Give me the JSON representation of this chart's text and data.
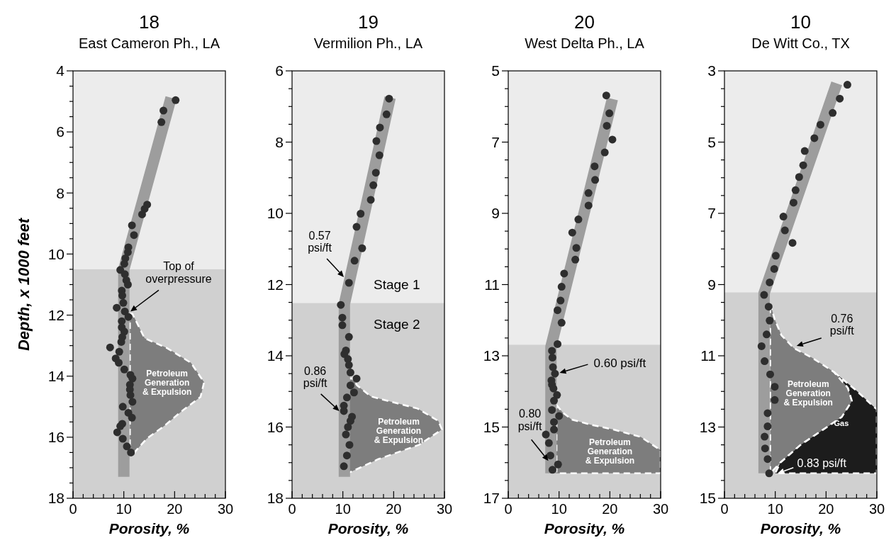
{
  "chart_data": [
    {
      "type": "scatter",
      "title": "18",
      "subtitle": "East Cameron Ph., LA",
      "xlabel": "Porosity, %",
      "ylabel": "Depth, x 1000 feet",
      "xlim": [
        0,
        30
      ],
      "ylim": [
        18,
        4
      ],
      "xticks": [
        0,
        {
          "value": 2,
          "label": null
        },
        {
          "value": 4,
          "label": null
        },
        {
          "value": 6,
          "label": null
        },
        {
          "value": 8,
          "label": null
        },
        10,
        {
          "value": 12,
          "label": null
        },
        {
          "value": 14,
          "label": null
        },
        {
          "value": 16,
          "label": null
        },
        {
          "value": 18,
          "label": null
        },
        20,
        {
          "value": 22,
          "label": null
        },
        {
          "value": 24,
          "label": null
        },
        {
          "value": 26,
          "label": null
        },
        {
          "value": 28,
          "label": null
        },
        30
      ],
      "yticks": [
        4,
        {
          "value": 4.5,
          "label": null
        },
        {
          "value": 5,
          "label": null
        },
        {
          "value": 5.5,
          "label": null
        },
        6,
        {
          "value": 6.5,
          "label": null
        },
        {
          "value": 7,
          "label": null
        },
        {
          "value": 7.5,
          "label": null
        },
        8,
        {
          "value": 8.5,
          "label": null
        },
        {
          "value": 9,
          "label": null
        },
        {
          "value": 9.5,
          "label": null
        },
        10,
        {
          "value": 10.5,
          "label": null
        },
        {
          "value": 11,
          "label": null
        },
        {
          "value": 11.5,
          "label": null
        },
        12,
        {
          "value": 12.5,
          "label": null
        },
        {
          "value": 13,
          "label": null
        },
        {
          "value": 13.5,
          "label": null
        },
        14,
        {
          "value": 14.5,
          "label": null
        },
        {
          "value": 15,
          "label": null
        },
        {
          "value": 15.5,
          "label": null
        },
        16,
        {
          "value": 16.5,
          "label": null
        },
        {
          "value": 17,
          "label": null
        },
        {
          "value": 17.5,
          "label": null
        },
        18
      ],
      "bands": [
        {
          "axis": "y",
          "from": 10.5,
          "to": 18,
          "color": "#d0d0d0"
        }
      ],
      "series": [
        {
          "type": "area",
          "color": "#7d7d7d",
          "line_style": "dashed",
          "x": [
            11.2,
            11.7,
            14.1,
            18.5,
            23.2,
            25.8,
            25.1,
            21.3,
            17.9,
            14.5,
            12.6,
            11.6,
            11.2
          ],
          "values": [
            11.96,
            11.96,
            12.76,
            13.08,
            13.56,
            14.2,
            14.68,
            15.16,
            15.64,
            16.05,
            16.4,
            16.6,
            16.6
          ]
        },
        {
          "type": "line",
          "color": "#9d9d9d",
          "x": [
            19.3,
            10.0,
            10.0
          ],
          "values": [
            4.88,
            10.5,
            17.3
          ]
        },
        {
          "color": "#2e2e2e",
          "marker": "circle",
          "x": [
            20.2,
            17.8,
            17.4,
            14.6,
            14.1,
            13.6,
            11.6,
            12.0,
            10.9,
            10.8,
            10.3,
            10.1,
            9.3,
            10.2,
            10.5,
            10.8,
            9.6,
            9.7,
            9.9,
            8.6,
            10.2,
            10.9,
            9.6,
            9.6,
            10.1,
            9.7,
            9.5,
            7.3,
            9.1,
            8.4,
            9.0,
            10.1,
            11.3,
            11.7,
            11.2,
            11.2,
            11.3,
            11.7,
            9.8,
            10.9,
            11.6,
            9.7,
            9.3,
            8.7,
            9.8,
            10.6,
            11.4
          ],
          "values": [
            4.96,
            5.3,
            5.68,
            8.38,
            8.52,
            8.7,
            9.06,
            9.38,
            9.78,
            9.94,
            10.14,
            10.32,
            10.52,
            10.66,
            10.86,
            11.0,
            11.2,
            11.36,
            11.6,
            11.76,
            11.88,
            12.06,
            12.2,
            12.4,
            12.54,
            12.72,
            12.88,
            13.06,
            13.2,
            13.42,
            13.56,
            13.78,
            13.96,
            14.08,
            14.28,
            14.44,
            14.62,
            14.84,
            15.0,
            15.2,
            15.36,
            15.56,
            15.64,
            15.84,
            16.05,
            16.3,
            16.5
          ]
        }
      ],
      "annotations": [
        {
          "text": "Top of overpressure",
          "x": 11.3,
          "y": 11.88
        },
        "Petroleum Generation & Expulsion"
      ]
    },
    {
      "type": "scatter",
      "title": "19",
      "subtitle": "Vermilion Ph., LA",
      "xlabel": "Porosity, %",
      "xlim": [
        0,
        30
      ],
      "ylim": [
        18,
        6
      ],
      "xticks": [
        0,
        {
          "value": 2,
          "label": null
        },
        {
          "value": 4,
          "label": null
        },
        {
          "value": 6,
          "label": null
        },
        {
          "value": 8,
          "label": null
        },
        10,
        {
          "value": 12,
          "label": null
        },
        {
          "value": 14,
          "label": null
        },
        {
          "value": 16,
          "label": null
        },
        {
          "value": 18,
          "label": null
        },
        20,
        {
          "value": 22,
          "label": null
        },
        {
          "value": 24,
          "label": null
        },
        {
          "value": 26,
          "label": null
        },
        {
          "value": 28,
          "label": null
        },
        30
      ],
      "yticks": [
        6,
        {
          "value": 6.5,
          "label": null
        },
        {
          "value": 7,
          "label": null
        },
        {
          "value": 7.5,
          "label": null
        },
        8,
        {
          "value": 8.5,
          "label": null
        },
        {
          "value": 9,
          "label": null
        },
        {
          "value": 9.5,
          "label": null
        },
        10,
        {
          "value": 10.5,
          "label": null
        },
        {
          "value": 11,
          "label": null
        },
        {
          "value": 11.5,
          "label": null
        },
        12,
        {
          "value": 12.5,
          "label": null
        },
        {
          "value": 13,
          "label": null
        },
        {
          "value": 13.5,
          "label": null
        },
        14,
        {
          "value": 14.5,
          "label": null
        },
        {
          "value": 15,
          "label": null
        },
        {
          "value": 15.5,
          "label": null
        },
        16,
        {
          "value": 16.5,
          "label": null
        },
        {
          "value": 17,
          "label": null
        },
        {
          "value": 17.5,
          "label": null
        },
        18
      ],
      "bands": [
        {
          "axis": "y",
          "from": 12.52,
          "to": 18,
          "color": "#d0d0d0"
        }
      ],
      "series": [
        {
          "type": "area",
          "color": "#7d7d7d",
          "line_style": "dashed",
          "x": [
            10.9,
            11.9,
            12.8,
            15.5,
            19.2,
            24.7,
            28.8,
            29.5,
            25,
            17,
            12.5,
            10.9
          ],
          "values": [
            14.64,
            14.64,
            14.83,
            15.14,
            15.28,
            15.48,
            15.83,
            16.07,
            16.5,
            16.9,
            17.2,
            17.3
          ]
        },
        {
          "type": "line",
          "color": "#9d9d9d",
          "x": [
            19.3,
            10.3,
            10.3
          ],
          "values": [
            6.75,
            12.55,
            17.4
          ]
        },
        {
          "color": "#2e2e2e",
          "marker": "circle",
          "x": [
            19.1,
            18.6,
            17.3,
            16.6,
            17.2,
            16.5,
            16.0,
            15.5,
            13.5,
            12.7,
            13.8,
            12.3,
            11.2,
            9.6,
            9.9,
            9.9,
            11.2,
            10.6,
            10.3,
            11.0,
            11.2,
            11.5,
            12.7,
            11.5,
            12.2,
            10.8,
            10.2,
            10.2,
            11.8,
            11.5,
            11.0,
            10.6,
            11.3,
            10.8,
            10.2
          ],
          "values": [
            6.78,
            7.22,
            7.59,
            7.97,
            8.37,
            8.86,
            9.21,
            9.62,
            10.01,
            10.38,
            10.98,
            11.33,
            11.95,
            12.57,
            12.93,
            13.14,
            13.47,
            13.85,
            13.95,
            14.09,
            14.26,
            14.47,
            14.64,
            14.83,
            15.03,
            15.17,
            15.4,
            15.55,
            15.71,
            15.83,
            16.0,
            16.21,
            16.5,
            16.8,
            17.1
          ]
        }
      ],
      "annotations": [
        {
          "text": "0.57 psi/ft",
          "x": 10.2,
          "y": 11.79
        },
        {
          "text": "0.86 psi/ft",
          "x": 9.3,
          "y": 15.55
        },
        "Stage 1",
        "Stage 2",
        "Petroleum Generation & Expulsion"
      ]
    },
    {
      "type": "scatter",
      "title": "20",
      "subtitle": "West Delta Ph., LA",
      "xlabel": "Porosity, %",
      "xlim": [
        0,
        30
      ],
      "ylim": [
        17,
        5
      ],
      "xticks": [
        0,
        {
          "value": 2,
          "label": null
        },
        {
          "value": 4,
          "label": null
        },
        {
          "value": 6,
          "label": null
        },
        {
          "value": 8,
          "label": null
        },
        10,
        {
          "value": 12,
          "label": null
        },
        {
          "value": 14,
          "label": null
        },
        {
          "value": 16,
          "label": null
        },
        {
          "value": 18,
          "label": null
        },
        20,
        {
          "value": 22,
          "label": null
        },
        {
          "value": 24,
          "label": null
        },
        {
          "value": 26,
          "label": null
        },
        {
          "value": 28,
          "label": null
        },
        30
      ],
      "yticks": [
        5,
        {
          "value": 5.5,
          "label": null
        },
        {
          "value": 6,
          "label": null
        },
        {
          "value": 6.5,
          "label": null
        },
        7,
        {
          "value": 7.5,
          "label": null
        },
        {
          "value": 8,
          "label": null
        },
        {
          "value": 8.5,
          "label": null
        },
        9,
        {
          "value": 9.5,
          "label": null
        },
        {
          "value": 10,
          "label": null
        },
        {
          "value": 10.5,
          "label": null
        },
        11,
        {
          "value": 11.5,
          "label": null
        },
        {
          "value": 12,
          "label": null
        },
        {
          "value": 12.5,
          "label": null
        },
        13,
        {
          "value": 13.5,
          "label": null
        },
        {
          "value": 14,
          "label": null
        },
        {
          "value": 14.5,
          "label": null
        },
        15,
        {
          "value": 15.5,
          "label": null
        },
        {
          "value": 16,
          "label": null
        },
        {
          "value": 16.5,
          "label": null
        },
        17
      ],
      "bands": [
        {
          "axis": "y",
          "from": 12.69,
          "to": 17,
          "color": "#d0d0d0"
        }
      ],
      "series": [
        {
          "type": "area",
          "color": "#7d7d7d",
          "line_style": "dashed",
          "x": [
            9.5,
            10.7,
            12.5,
            16.1,
            20.7,
            26.1,
            30,
            30,
            9.5
          ],
          "values": [
            14.38,
            14.59,
            14.79,
            14.93,
            15.07,
            15.28,
            15.65,
            16.3,
            16.3
          ]
        },
        {
          "type": "line",
          "color": "#9d9d9d",
          "x": [
            20.5,
            8.4,
            8.4
          ],
          "values": [
            5.79,
            12.75,
            16.3
          ]
        },
        {
          "color": "#2e2e2e",
          "marker": "circle",
          "x": [
            19.3,
            19.9,
            19.4,
            20.5,
            19.0,
            17.0,
            17.1,
            15.8,
            15.8,
            13.8,
            12.6,
            13.4,
            13.2,
            11.0,
            10.5,
            10.3,
            9.7,
            10.5,
            9.7,
            8.6,
            8.7,
            8.8,
            9.2,
            8.5,
            8.6,
            8.9,
            9.6,
            9.0,
            8.6,
            10.0,
            9.0,
            9.0,
            7.4,
            8.0,
            8.3,
            9.8,
            8.7
          ],
          "values": [
            5.69,
            6.19,
            6.54,
            6.93,
            7.29,
            7.68,
            8.06,
            8.43,
            8.78,
            9.17,
            9.54,
            9.97,
            10.3,
            10.69,
            11.06,
            11.45,
            11.72,
            12.07,
            12.67,
            12.86,
            13.05,
            13.32,
            13.5,
            13.69,
            13.81,
            13.92,
            14.1,
            14.26,
            14.52,
            14.69,
            14.86,
            15.07,
            15.21,
            15.45,
            15.8,
            16.05,
            16.2
          ]
        }
      ],
      "annotations": [
        {
          "text": "0.60 psi/ft",
          "x": 10.1,
          "y": 13.48
        },
        {
          "text": "0.80 psi/ft",
          "x": 7.9,
          "y": 15.95
        },
        "Petroleum Generation & Expulsion"
      ]
    },
    {
      "type": "scatter",
      "title": "10",
      "subtitle": "De Witt Co., TX",
      "xlabel": "Porosity, %",
      "xlim": [
        0,
        30
      ],
      "ylim": [
        15,
        3
      ],
      "xticks": [
        0,
        {
          "value": 2,
          "label": null
        },
        {
          "value": 4,
          "label": null
        },
        {
          "value": 6,
          "label": null
        },
        {
          "value": 8,
          "label": null
        },
        10,
        {
          "value": 12,
          "label": null
        },
        {
          "value": 14,
          "label": null
        },
        {
          "value": 16,
          "label": null
        },
        {
          "value": 18,
          "label": null
        },
        20,
        {
          "value": 22,
          "label": null
        },
        {
          "value": 24,
          "label": null
        },
        {
          "value": 26,
          "label": null
        },
        {
          "value": 28,
          "label": null
        },
        30
      ],
      "yticks": [
        3,
        {
          "value": 3.5,
          "label": null
        },
        {
          "value": 4,
          "label": null
        },
        {
          "value": 4.5,
          "label": null
        },
        5,
        {
          "value": 5.5,
          "label": null
        },
        {
          "value": 6,
          "label": null
        },
        {
          "value": 6.5,
          "label": null
        },
        7,
        {
          "value": 7.5,
          "label": null
        },
        {
          "value": 8,
          "label": null
        },
        {
          "value": 8.5,
          "label": null
        },
        9,
        {
          "value": 9.5,
          "label": null
        },
        {
          "value": 10,
          "label": null
        },
        {
          "value": 10.5,
          "label": null
        },
        11,
        {
          "value": 11.5,
          "label": null
        },
        {
          "value": 12,
          "label": null
        },
        {
          "value": 12.5,
          "label": null
        },
        13,
        {
          "value": 13.5,
          "label": null
        },
        {
          "value": 14,
          "label": null
        },
        {
          "value": 14.5,
          "label": null
        },
        15
      ],
      "bands": [
        {
          "axis": "y",
          "from": 9.22,
          "to": 15,
          "color": "#d0d0d0"
        }
      ],
      "series": [
        {
          "type": "area",
          "color": "#7d7d7d",
          "line_style": "dashed",
          "x": [
            9.0,
            9.9,
            11.2,
            13.7,
            17.2,
            21.6,
            24.3,
            25.1,
            23.1,
            20.1,
            15,
            11,
            9.0
          ],
          "values": [
            9.53,
            9.98,
            10.42,
            10.79,
            11.05,
            11.46,
            11.9,
            12.27,
            12.72,
            13.01,
            13.5,
            14.0,
            14.3
          ]
        },
        {
          "type": "area",
          "color": "#1c1c1c",
          "line_style": "dashed",
          "x": [
            21.6,
            26.0,
            29.3,
            30,
            30,
            10.0,
            11,
            15,
            20.1,
            23.1,
            25.1,
            24.3,
            21.6
          ],
          "values": [
            11.46,
            11.98,
            12.42,
            12.5,
            14.3,
            14.3,
            14.0,
            13.5,
            13.01,
            12.72,
            12.27,
            11.9,
            11.46
          ]
        },
        {
          "type": "line",
          "color": "#9d9d9d",
          "x": [
            22.1,
            7.8,
            7.8
          ],
          "values": [
            3.35,
            9.24,
            14.3
          ]
        },
        {
          "color": "#2e2e2e",
          "marker": "circle",
          "x": [
            24.2,
            22.7,
            21.3,
            18.9,
            17.7,
            15.8,
            15.5,
            14.7,
            14.0,
            13.6,
            11.6,
            11.9,
            13.4,
            10.1,
            9.8,
            8.9,
            7.8,
            8.7,
            8.9,
            8.3,
            7.3,
            7.9,
            9.0,
            9.9,
            9.9,
            8.5,
            8.5,
            7.9,
            8.0,
            8.5,
            8.8
          ],
          "values": [
            3.39,
            3.78,
            4.18,
            4.51,
            4.89,
            5.25,
            5.65,
            5.98,
            6.35,
            6.7,
            7.09,
            7.48,
            7.83,
            8.19,
            8.56,
            8.94,
            9.29,
            9.62,
            10.01,
            10.4,
            10.73,
            11.15,
            11.52,
            11.87,
            12.24,
            12.61,
            12.98,
            13.27,
            13.6,
            13.9,
            14.3
          ]
        }
      ],
      "annotations": [
        {
          "text": "0.76 psi/ft",
          "x": 14.2,
          "y": 10.72
        },
        "Petroleum Generation & Expulsion",
        "Gas",
        {
          "text": "0.83 psi/ft",
          "x": 10.5,
          "y": 14.3
        }
      ]
    }
  ]
}
